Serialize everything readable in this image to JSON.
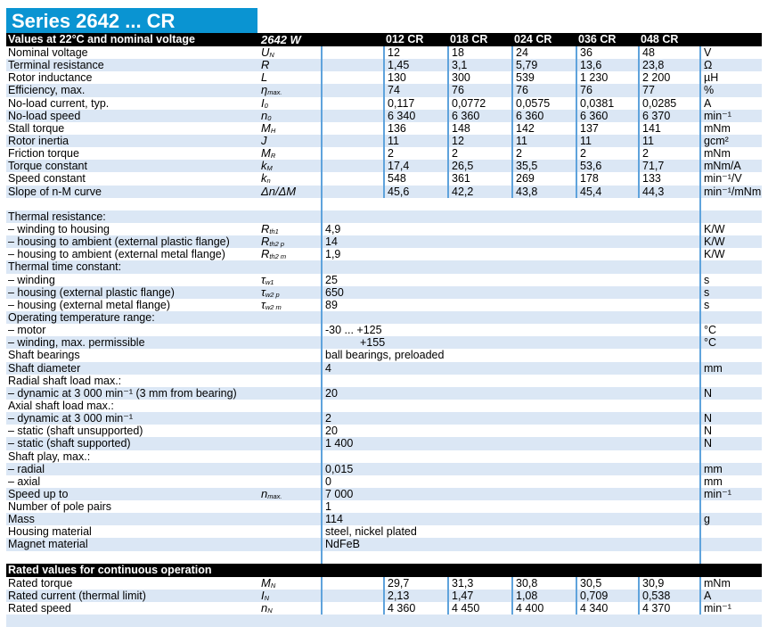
{
  "title": "Series 2642 ... CR",
  "top": {
    "header": {
      "label": "Values at 22°C and nominal voltage",
      "base": "2642 W",
      "types": [
        "012 CR",
        "018 CR",
        "024 CR",
        "036 CR",
        "048 CR"
      ]
    },
    "rows": [
      {
        "label": "Nominal voltage",
        "sym": {
          "m": "U",
          "s": "N"
        },
        "values": [
          "12",
          "18",
          "24",
          "36",
          "48"
        ],
        "unit": "V"
      },
      {
        "label": "Terminal resistance",
        "sym": {
          "m": "R",
          "s": ""
        },
        "values": [
          "1,45",
          "3,1",
          "5,79",
          "13,6",
          "23,8"
        ],
        "unit": "Ω"
      },
      {
        "label": "Rotor inductance",
        "sym": {
          "m": "L",
          "s": ""
        },
        "values": [
          "130",
          "300",
          "539",
          "1 230",
          "2 200"
        ],
        "unit": "µH"
      },
      {
        "label": "Efficiency, max.",
        "sym": {
          "m": "η",
          "s": "max."
        },
        "values": [
          "74",
          "76",
          "76",
          "76",
          "77"
        ],
        "unit": "%"
      },
      {
        "label": "No-load current, typ.",
        "sym": {
          "m": "I",
          "s": "0"
        },
        "values": [
          "0,117",
          "0,0772",
          "0,0575",
          "0,0381",
          "0,0285"
        ],
        "unit": "A"
      },
      {
        "label": "No-load speed",
        "sym": {
          "m": "n",
          "s": "0"
        },
        "values": [
          "6 340",
          "6 360",
          "6 360",
          "6 360",
          "6 370"
        ],
        "unit": "min⁻¹"
      },
      {
        "label": "Stall torque",
        "sym": {
          "m": "M",
          "s": "H"
        },
        "values": [
          "136",
          "148",
          "142",
          "137",
          "141"
        ],
        "unit": "mNm"
      },
      {
        "label": "Rotor inertia",
        "sym": {
          "m": "J",
          "s": ""
        },
        "values": [
          "11",
          "12",
          "11",
          "11",
          "11"
        ],
        "unit": "gcm²"
      },
      {
        "label": "Friction torque",
        "sym": {
          "m": "M",
          "s": "R"
        },
        "values": [
          "2",
          "2",
          "2",
          "2",
          "2"
        ],
        "unit": "mNm"
      },
      {
        "label": "Torque constant",
        "sym": {
          "m": "k",
          "s": "M"
        },
        "values": [
          "17,4",
          "26,5",
          "35,5",
          "53,6",
          "71,7"
        ],
        "unit": "mNm/A"
      },
      {
        "label": "Speed constant",
        "sym": {
          "m": "k",
          "s": "n"
        },
        "values": [
          "548",
          "361",
          "269",
          "178",
          "133"
        ],
        "unit": "min⁻¹/V"
      },
      {
        "label": "Slope of n-M curve",
        "sym": {
          "m": "Δn/ΔM",
          "s": ""
        },
        "values": [
          "45,6",
          "42,2",
          "43,8",
          "45,4",
          "44,3"
        ],
        "unit": "min⁻¹/mNm"
      }
    ]
  },
  "mid": {
    "rows": [
      {
        "label": "Thermal resistance:",
        "sym": {
          "m": "",
          "s": ""
        },
        "value": "",
        "unit": ""
      },
      {
        "label": "– winding to housing",
        "sym": {
          "m": "R",
          "s": "th1"
        },
        "value": "4,9",
        "unit": "K/W"
      },
      {
        "label": "– housing to ambient (external plastic flange)",
        "sym": {
          "m": "R",
          "s": "th2 p"
        },
        "value": "14",
        "unit": "K/W"
      },
      {
        "label": "– housing to ambient (external metal flange)",
        "sym": {
          "m": "R",
          "s": "th2 m"
        },
        "value": "1,9",
        "unit": "K/W"
      },
      {
        "label": "Thermal time constant:",
        "sym": {
          "m": "",
          "s": ""
        },
        "value": "",
        "unit": ""
      },
      {
        "label": "– winding",
        "sym": {
          "m": "τ",
          "s": "w1"
        },
        "value": "25",
        "unit": "s"
      },
      {
        "label": "– housing (external plastic flange)",
        "sym": {
          "m": "τ",
          "s": "w2 p"
        },
        "value": "650",
        "unit": "s"
      },
      {
        "label": "– housing (external metal flange)",
        "sym": {
          "m": "τ",
          "s": "w2 m"
        },
        "value": "89",
        "unit": "s"
      },
      {
        "label": "Operating temperature range:",
        "sym": {
          "m": "",
          "s": ""
        },
        "value": "",
        "unit": ""
      },
      {
        "label": "– motor",
        "sym": {
          "m": "",
          "s": ""
        },
        "value": "-30 ... +125",
        "unit": "°C"
      },
      {
        "label": "– winding, max. permissible",
        "sym": {
          "m": "",
          "s": ""
        },
        "value": "+155",
        "unit": "°C"
      },
      {
        "label": "Shaft bearings",
        "sym": {
          "m": "",
          "s": ""
        },
        "value": "ball bearings, preloaded",
        "unit": ""
      },
      {
        "label": "Shaft diameter",
        "sym": {
          "m": "",
          "s": ""
        },
        "value": "4",
        "unit": "mm"
      },
      {
        "label": "Radial shaft load max.:",
        "sym": {
          "m": "",
          "s": ""
        },
        "value": "",
        "unit": ""
      },
      {
        "label": "– dynamic at 3 000 min⁻¹ (3 mm from bearing)",
        "sym": {
          "m": "",
          "s": ""
        },
        "value": "20",
        "unit": "N"
      },
      {
        "label": "Axial shaft load max.:",
        "sym": {
          "m": "",
          "s": ""
        },
        "value": "",
        "unit": ""
      },
      {
        "label": "– dynamic at 3 000 min⁻¹",
        "sym": {
          "m": "",
          "s": ""
        },
        "value": "2",
        "unit": "N"
      },
      {
        "label": "– static (shaft unsupported)",
        "sym": {
          "m": "",
          "s": ""
        },
        "value": "20",
        "unit": "N"
      },
      {
        "label": "– static (shaft supported)",
        "sym": {
          "m": "",
          "s": ""
        },
        "value": "1 400",
        "unit": "N"
      },
      {
        "label": "Shaft play, max.:",
        "sym": {
          "m": "",
          "s": ""
        },
        "value": "",
        "unit": ""
      },
      {
        "label": "– radial",
        "sym": {
          "m": "",
          "s": ""
        },
        "value": "0,015",
        "unit": "mm"
      },
      {
        "label": "– axial",
        "sym": {
          "m": "",
          "s": ""
        },
        "value": "0",
        "unit": "mm"
      },
      {
        "label": "Speed up to",
        "sym": {
          "m": "n",
          "s": "max."
        },
        "value": "7 000",
        "unit": "min⁻¹"
      },
      {
        "label": "Number of pole pairs",
        "sym": {
          "m": "",
          "s": ""
        },
        "value": "1",
        "unit": ""
      },
      {
        "label": "Mass",
        "sym": {
          "m": "",
          "s": ""
        },
        "value": "114",
        "unit": "g"
      },
      {
        "label": "Housing material",
        "sym": {
          "m": "",
          "s": ""
        },
        "value": "steel, nickel plated",
        "unit": ""
      },
      {
        "label": "Magnet material",
        "sym": {
          "m": "",
          "s": ""
        },
        "value": "NdFeB",
        "unit": ""
      }
    ]
  },
  "rated": {
    "header": "Rated values for continuous operation",
    "rows": [
      {
        "label": "Rated torque",
        "sym": {
          "m": "M",
          "s": "N"
        },
        "values": [
          "29,7",
          "31,3",
          "30,8",
          "30,5",
          "30,9"
        ],
        "unit": "mNm"
      },
      {
        "label": "Rated current (thermal limit)",
        "sym": {
          "m": "I",
          "s": "N"
        },
        "values": [
          "2,13",
          "1,47",
          "1,08",
          "0,709",
          "0,538"
        ],
        "unit": "A"
      },
      {
        "label": "Rated speed",
        "sym": {
          "m": "n",
          "s": "N"
        },
        "values": [
          "4 360",
          "4 450",
          "4 400",
          "4 340",
          "4 370"
        ],
        "unit": "min⁻¹"
      }
    ]
  },
  "colors": {
    "title_bg": "#0a94d2",
    "header_bg": "#000000",
    "row_alt": "#dbe7f5",
    "rule": "#5fa3dc"
  }
}
